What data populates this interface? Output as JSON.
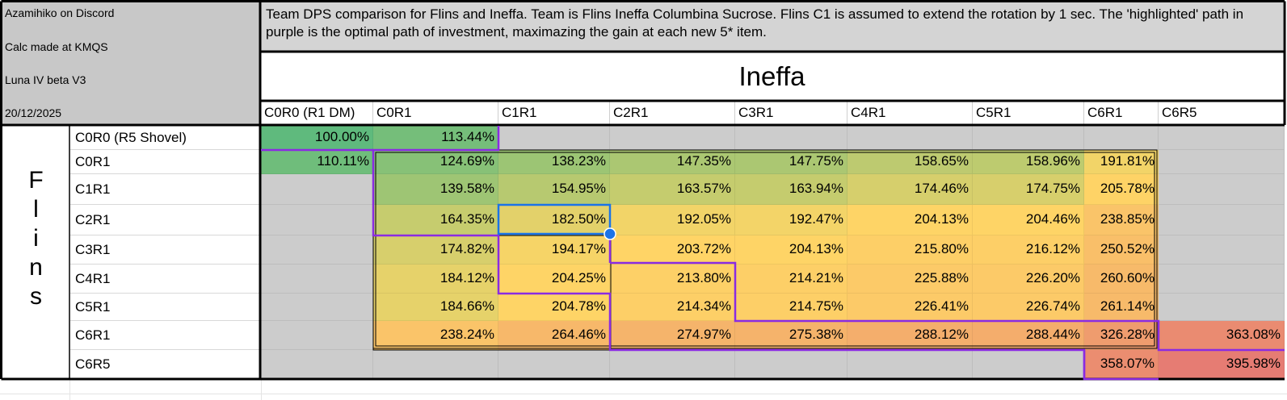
{
  "meta": {
    "author": "Azamihiko on Discord",
    "calc_place": "Calc made at KMQS",
    "version": "Luna IV beta V3",
    "date": "20/12/2025"
  },
  "description": "Team DPS comparison for Flins and Ineffa. Team is Flins Ineffa Columbina Sucrose. Flins C1 is assumed to extend the rotation by 1 sec. The 'highlighted' path in purple is the optimal path of investment, maximazing the gain at each new 5* item.",
  "ineffa_title": "Ineffa",
  "flins_letters": [
    "F",
    "l",
    "i",
    "n",
    "s"
  ],
  "columns": [
    "C0R0 (R1 DM)",
    "C0R1",
    "C1R1",
    "C2R1",
    "C3R1",
    "C4R1",
    "C5R1",
    "C6R1",
    "C6R5"
  ],
  "rows": [
    {
      "label": "C0R0 (R5 Shovel)",
      "values": [
        "100.00%",
        "113.44%",
        "",
        "",
        "",
        "",
        "",
        "",
        ""
      ]
    },
    {
      "label": "C0R1",
      "values": [
        "110.11%",
        "124.69%",
        "138.23%",
        "147.35%",
        "147.75%",
        "158.65%",
        "158.96%",
        "191.81%",
        ""
      ]
    },
    {
      "label": "C1R1",
      "values": [
        "",
        "139.58%",
        "154.95%",
        "163.57%",
        "163.94%",
        "174.46%",
        "174.75%",
        "205.78%",
        ""
      ]
    },
    {
      "label": "C2R1",
      "values": [
        "",
        "164.35%",
        "182.50%",
        "192.05%",
        "192.47%",
        "204.13%",
        "204.46%",
        "238.85%",
        ""
      ]
    },
    {
      "label": "C3R1",
      "values": [
        "",
        "174.82%",
        "194.17%",
        "203.72%",
        "204.13%",
        "215.80%",
        "216.12%",
        "250.52%",
        ""
      ]
    },
    {
      "label": "C4R1",
      "values": [
        "",
        "184.12%",
        "204.25%",
        "213.80%",
        "214.21%",
        "225.88%",
        "226.20%",
        "260.60%",
        ""
      ]
    },
    {
      "label": "C5R1",
      "values": [
        "",
        "184.66%",
        "204.78%",
        "214.34%",
        "214.75%",
        "226.41%",
        "226.74%",
        "261.14%",
        ""
      ]
    },
    {
      "label": "C6R1",
      "values": [
        "",
        "238.24%",
        "264.46%",
        "274.97%",
        "275.38%",
        "288.12%",
        "288.44%",
        "326.28%",
        "363.08%"
      ]
    },
    {
      "label": "C6R5",
      "values": [
        "",
        "",
        "",
        "",
        "",
        "",
        "",
        "358.07%",
        "395.98%"
      ]
    }
  ],
  "colors": {
    "heat_low": "#5fba7d",
    "heat_mid": "#ffd666",
    "heat_high": "#e67c73",
    "empty_cell": "#cccccc",
    "path_purple": "#8a2be2",
    "selection_blue": "#1a73e8"
  }
}
